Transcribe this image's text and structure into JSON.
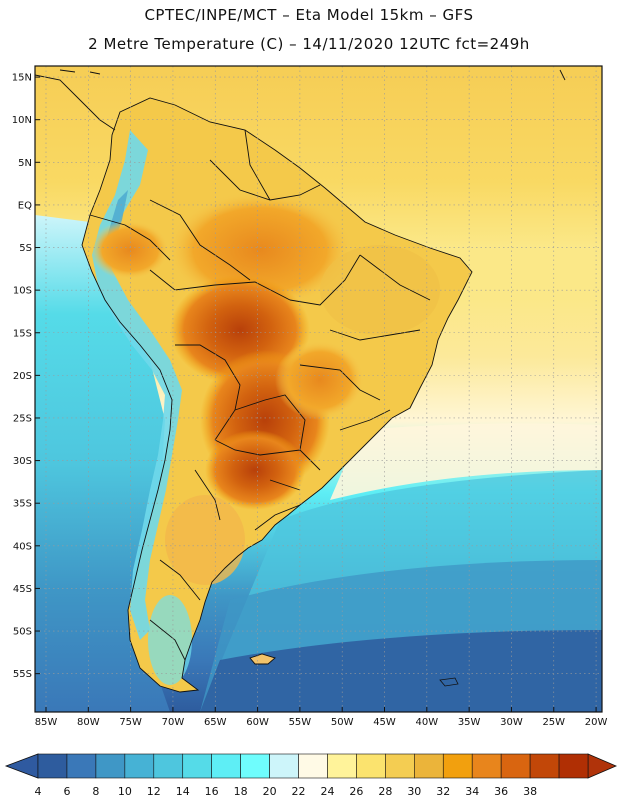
{
  "header": {
    "line1": "CPTEC/INPE/MCT –  Eta Model 15km – GFS",
    "line2": "2 Metre Temperature (C) – 14/11/2020 12UTC fct=249h"
  },
  "axes": {
    "lat_labels": [
      "15N",
      "10N",
      "5N",
      "EQ",
      "5S",
      "10S",
      "15S",
      "20S",
      "25S",
      "30S",
      "35S",
      "40S",
      "45S",
      "50S",
      "55S"
    ],
    "lon_labels": [
      "85W",
      "80W",
      "75W",
      "70W",
      "65W",
      "60W",
      "55W",
      "50W",
      "45W",
      "40W",
      "35W",
      "30W",
      "25W",
      "20W"
    ],
    "lat_values": [
      15,
      10,
      5,
      0,
      -5,
      -10,
      -15,
      -20,
      -25,
      -30,
      -35,
      -40,
      -45,
      -50,
      -55
    ],
    "lon_values": [
      -85,
      -80,
      -75,
      -70,
      -65,
      -60,
      -55,
      -50,
      -45,
      -40,
      -35,
      -30,
      -25,
      -20
    ]
  },
  "colorbar": {
    "labels": [
      "4",
      "6",
      "8",
      "10",
      "12",
      "14",
      "16",
      "18",
      "20",
      "22",
      "24",
      "26",
      "28",
      "30",
      "32",
      "34",
      "36",
      "38"
    ],
    "colors": [
      "#2e5c9e",
      "#3a78b8",
      "#3f97c6",
      "#46b2d5",
      "#4ec6de",
      "#55dbe8",
      "#5eeef5",
      "#6ffdfd",
      "#cdf5fa",
      "#fffae6",
      "#fff39a",
      "#fbe36e",
      "#f4cd52",
      "#ebb43a",
      "#f2a00e",
      "#e8851c",
      "#d96510",
      "#c24708",
      "#b02f04"
    ],
    "low_color": "#2f5aa0",
    "high_color": "#b0330a"
  }
}
